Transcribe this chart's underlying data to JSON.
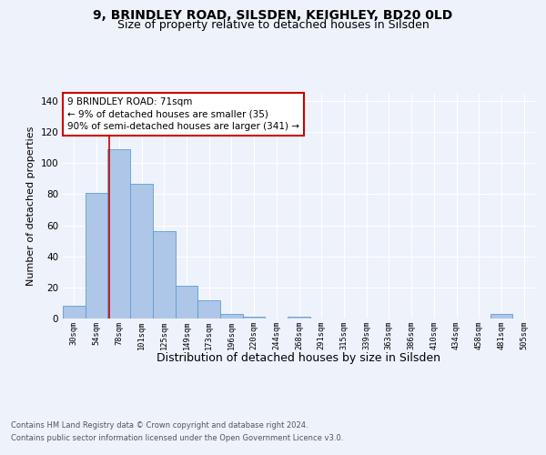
{
  "title1": "9, BRINDLEY ROAD, SILSDEN, KEIGHLEY, BD20 0LD",
  "title2": "Size of property relative to detached houses in Silsden",
  "xlabel": "Distribution of detached houses by size in Silsden",
  "ylabel": "Number of detached properties",
  "categories": [
    "30sqm",
    "54sqm",
    "78sqm",
    "101sqm",
    "125sqm",
    "149sqm",
    "173sqm",
    "196sqm",
    "220sqm",
    "244sqm",
    "268sqm",
    "291sqm",
    "315sqm",
    "339sqm",
    "363sqm",
    "386sqm",
    "410sqm",
    "434sqm",
    "458sqm",
    "481sqm",
    "505sqm"
  ],
  "values": [
    8,
    81,
    109,
    87,
    56,
    21,
    12,
    3,
    1,
    0,
    1,
    0,
    0,
    0,
    0,
    0,
    0,
    0,
    0,
    3,
    0
  ],
  "bar_color": "#aec6e8",
  "bar_edge_color": "#5a9fd4",
  "red_line_x": 1.58,
  "annotation_line1": "9 BRINDLEY ROAD: 71sqm",
  "annotation_line2": "← 9% of detached houses are smaller (35)",
  "annotation_line3": "90% of semi-detached houses are larger (341) →",
  "annotation_box_color": "#ffffff",
  "annotation_box_edge_color": "#cc0000",
  "ylim": [
    0,
    145
  ],
  "footnote1": "Contains HM Land Registry data © Crown copyright and database right 2024.",
  "footnote2": "Contains public sector information licensed under the Open Government Licence v3.0.",
  "background_color": "#eef2fb",
  "grid_color": "#ffffff",
  "title1_fontsize": 10,
  "title2_fontsize": 9,
  "xlabel_fontsize": 9,
  "ylabel_fontsize": 8,
  "footnote_fontsize": 6,
  "annot_fontsize": 7.5
}
